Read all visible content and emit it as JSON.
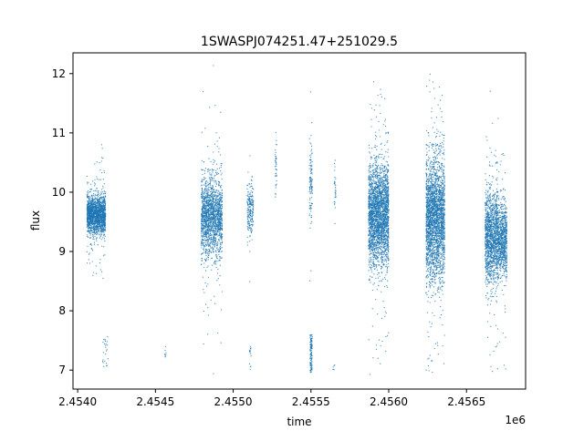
{
  "chart_data": {
    "type": "scatter",
    "title": "1SWASPJ074251.47+251029.5",
    "xlabel": "time",
    "ylabel": "flux",
    "x_offset_label": "1e6",
    "xlim": [
      2453970,
      2456880
    ],
    "ylim": [
      6.68,
      12.35
    ],
    "x_ticks": [
      2454000,
      2454500,
      2455000,
      2455500,
      2456000,
      2456500
    ],
    "x_tick_labels": [
      "2.4540",
      "2.4545",
      "2.4550",
      "2.4555",
      "2.4560",
      "2.4565"
    ],
    "y_ticks": [
      7,
      8,
      9,
      10,
      11,
      12
    ],
    "y_tick_labels": [
      "7",
      "8",
      "9",
      "10",
      "11",
      "12"
    ],
    "grid": false,
    "legend": "none",
    "marker_color": "#1f77b4",
    "clusters": [
      {
        "x_range": [
          2454060,
          2454180
        ],
        "center": 9.62,
        "spread": 0.16,
        "n": 1800
      },
      {
        "x_range": [
          2454795,
          2454930
        ],
        "center": 9.58,
        "spread": 0.32,
        "n": 1700
      },
      {
        "x_range": [
          2455090,
          2455130
        ],
        "center": 9.72,
        "spread": 0.22,
        "n": 220
      },
      {
        "x_range": [
          2455270,
          2455280
        ],
        "center": 10.45,
        "spread": 0.25,
        "n": 40
      },
      {
        "x_range": [
          2455490,
          2455510
        ],
        "center": 10.15,
        "spread": 0.35,
        "n": 110
      },
      {
        "x_range": [
          2455650,
          2455660
        ],
        "center": 10.0,
        "spread": 0.2,
        "n": 30
      },
      {
        "x_range": [
          2455870,
          2456000
        ],
        "center": 9.62,
        "spread": 0.42,
        "n": 2600
      },
      {
        "x_range": [
          2456240,
          2456360
        ],
        "center": 9.55,
        "spread": 0.5,
        "n": 2600
      },
      {
        "x_range": [
          2456620,
          2456700
        ],
        "center": 9.25,
        "spread": 0.38,
        "n": 1300
      },
      {
        "x_range": [
          2456700,
          2456760
        ],
        "center": 9.2,
        "spread": 0.3,
        "n": 800
      }
    ],
    "lower_groups": [
      {
        "x_range": [
          2454160,
          2454195
        ],
        "y_range": [
          7.0,
          7.6
        ],
        "n": 25
      },
      {
        "x_range": [
          2454560,
          2454570
        ],
        "y_range": [
          7.2,
          7.4
        ],
        "n": 8
      },
      {
        "x_range": [
          2455105,
          2455115
        ],
        "y_range": [
          7.0,
          7.4
        ],
        "n": 15
      },
      {
        "x_range": [
          2455495,
          2455508
        ],
        "y_range": [
          6.95,
          7.6
        ],
        "n": 120
      },
      {
        "x_range": [
          2455640,
          2455655
        ],
        "y_range": [
          7.0,
          7.15
        ],
        "n": 6
      }
    ]
  }
}
